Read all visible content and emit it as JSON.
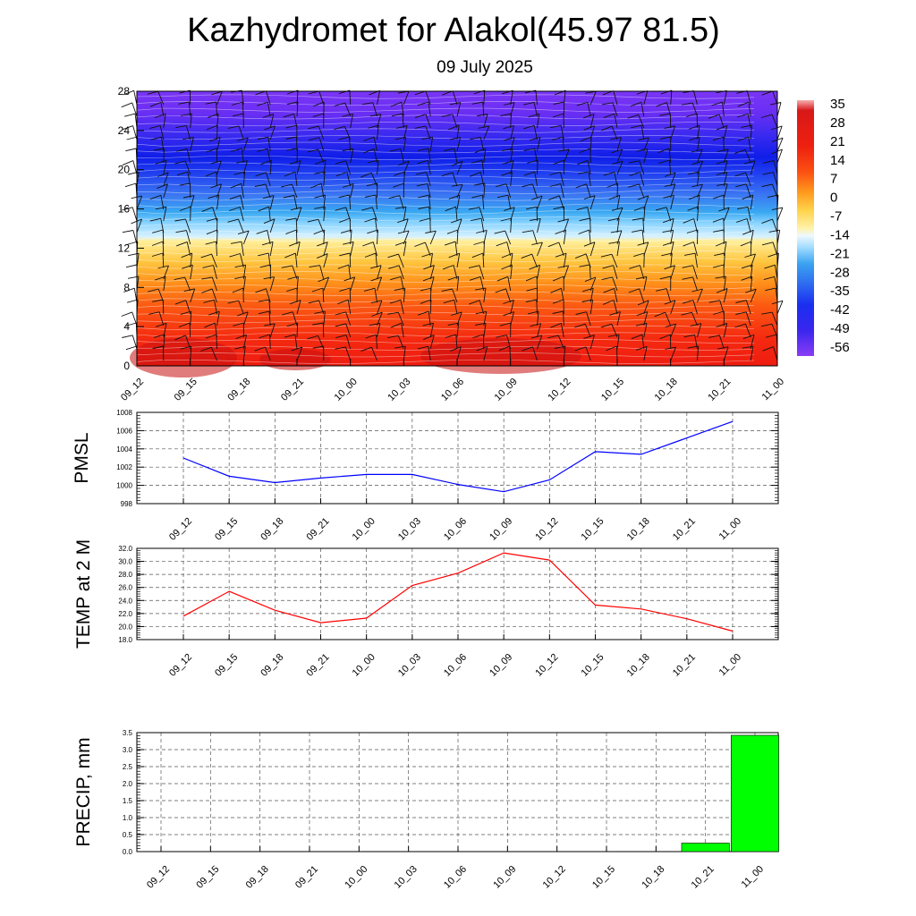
{
  "header": {
    "title": "Kazhydromet for Alakol(45.97 81.5)",
    "date": "09 July 2025"
  },
  "chart_data": [
    {
      "type": "heatmap",
      "title": "",
      "xlabel": "",
      "ylabel": "",
      "x_ticks": [
        "09_12",
        "09_15",
        "09_18",
        "09_21",
        "10_00",
        "10_03",
        "10_06",
        "10_09",
        "10_12",
        "10_15",
        "10_18",
        "10_21",
        "11_00"
      ],
      "y_ticks": [
        "0",
        "4",
        "8",
        "12",
        "16",
        "20",
        "24",
        "28"
      ],
      "ylim": [
        0,
        28
      ],
      "colorbar": {
        "labels": [
          "35",
          "28",
          "21",
          "14",
          "7",
          "0",
          "-7",
          "-14",
          "-21",
          "-28",
          "-35",
          "-42",
          "-49",
          "-56"
        ],
        "range": [
          -63,
          42
        ]
      },
      "overlay": "wind barbs and contour lines"
    },
    {
      "type": "line",
      "ylabel": "PMSL",
      "categories": [
        "09_12",
        "09_15",
        "09_18",
        "09_21",
        "10_00",
        "10_03",
        "10_06",
        "10_09",
        "10_12",
        "10_15",
        "10_18",
        "10_21",
        "11_00"
      ],
      "y_ticks": [
        "998",
        "1000",
        "1002",
        "1004",
        "1006",
        "1008"
      ],
      "ylim": [
        998,
        1008
      ],
      "color": "#0000ff",
      "values": [
        1003.0,
        1001.0,
        1000.3,
        1000.8,
        1001.2,
        1001.2,
        1000.1,
        999.3,
        1000.6,
        1003.7,
        1003.4,
        1005.2,
        1007.0
      ]
    },
    {
      "type": "line",
      "ylabel": "TEMP at 2 M",
      "categories": [
        "09_12",
        "09_15",
        "09_18",
        "09_21",
        "10_00",
        "10_03",
        "10_06",
        "10_09",
        "10_12",
        "10_15",
        "10_18",
        "10_21",
        "11_00"
      ],
      "y_ticks": [
        "18.0",
        "20.0",
        "22.0",
        "24.0",
        "26.0",
        "28.0",
        "30.0",
        "32.0"
      ],
      "ylim": [
        18,
        32
      ],
      "color": "#ff0000",
      "values": [
        21.6,
        25.4,
        22.5,
        20.6,
        21.3,
        26.3,
        28.2,
        31.3,
        30.2,
        23.3,
        22.7,
        21.2,
        19.3
      ]
    },
    {
      "type": "bar",
      "ylabel": "PRECIP, mm",
      "categories": [
        "09_12",
        "09_15",
        "09_18",
        "09_21",
        "10_00",
        "10_03",
        "10_06",
        "10_09",
        "10_12",
        "10_15",
        "10_18",
        "10_21",
        "11_00"
      ],
      "y_ticks": [
        "0.0",
        "0.5",
        "1.0",
        "1.5",
        "2.0",
        "2.5",
        "3.0",
        "3.5"
      ],
      "ylim": [
        0,
        3.5
      ],
      "color": "#00ff00",
      "values": [
        0,
        0,
        0,
        0,
        0,
        0,
        0,
        0,
        0,
        0,
        0,
        0.25,
        3.42
      ]
    }
  ]
}
